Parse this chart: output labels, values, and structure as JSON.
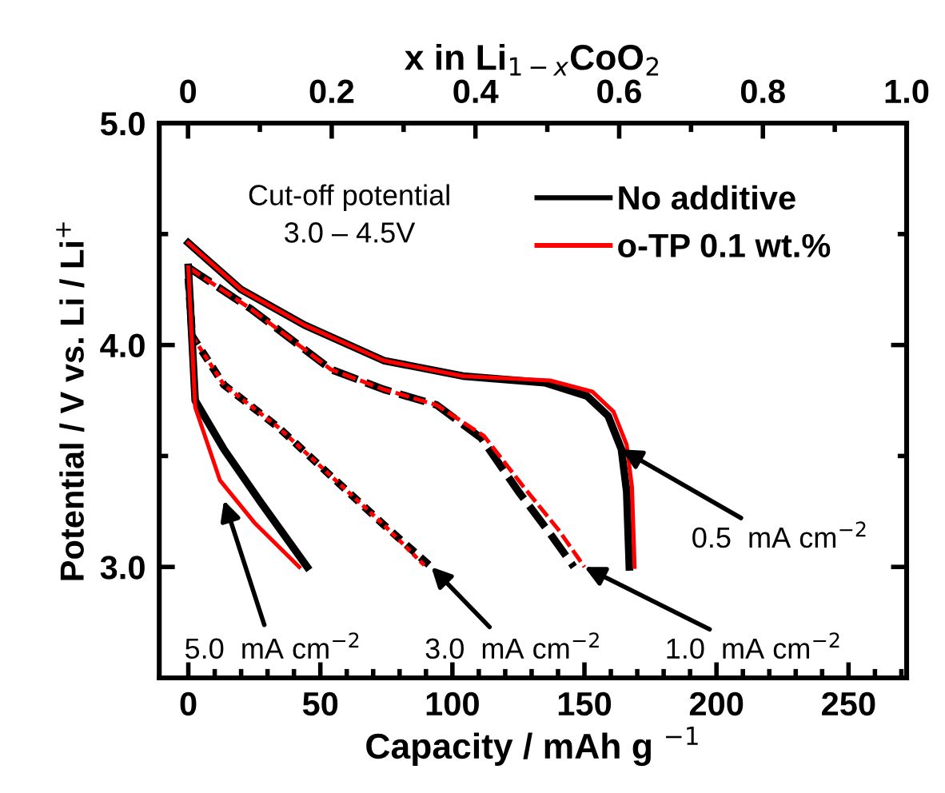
{
  "chart_data": {
    "type": "line",
    "xlabel": "Capacity / mAh g $^{−1}$",
    "ylabel": "Potential / V vs. Li / Li$^{+}$",
    "x2label": "x in Li$_{1−x}$CoO$_{2}$",
    "xlim": [
      -11,
      272
    ],
    "ylim": [
      2.5,
      5.0
    ],
    "x2lim": [
      -0.04,
      1.0
    ],
    "xticks": [
      0,
      {
        "value": 10,
        "label": null
      },
      {
        "value": 20,
        "label": null
      },
      {
        "value": 30,
        "label": null
      },
      {
        "value": 40,
        "label": null
      },
      50,
      {
        "value": 60,
        "label": null
      },
      {
        "value": 70,
        "label": null
      },
      {
        "value": 80,
        "label": null
      },
      {
        "value": 90,
        "label": null
      },
      100,
      {
        "value": 110,
        "label": null
      },
      {
        "value": 120,
        "label": null
      },
      {
        "value": 130,
        "label": null
      },
      {
        "value": 140,
        "label": null
      },
      150,
      {
        "value": 160,
        "label": null
      },
      {
        "value": 170,
        "label": null
      },
      {
        "value": 180,
        "label": null
      },
      {
        "value": 190,
        "label": null
      },
      200,
      {
        "value": 210,
        "label": null
      },
      {
        "value": 220,
        "label": null
      },
      {
        "value": 230,
        "label": null
      },
      {
        "value": 240,
        "label": null
      },
      250,
      {
        "value": 260,
        "label": null
      },
      {
        "value": 270,
        "label": null
      }
    ],
    "x2ticks": [
      0,
      {
        "value": 0.1,
        "label": null
      },
      0.2,
      {
        "value": 0.3,
        "label": null
      },
      0.4,
      {
        "value": 0.5,
        "label": null
      },
      0.6,
      {
        "value": 0.7,
        "label": null
      },
      0.8,
      {
        "value": 0.9,
        "label": null
      },
      {
        "value": 1.0,
        "label": "1.0"
      }
    ],
    "yticks": [
      {
        "value": 3.0,
        "label": "3.0"
      },
      {
        "value": 3.5,
        "label": null
      },
      {
        "value": 4.0,
        "label": "4.0"
      },
      {
        "value": 4.5,
        "label": null
      },
      {
        "value": 5.0,
        "label": "5.0"
      }
    ],
    "legend": "top right",
    "grid": false,
    "series": [
      {
        "name": "No additive",
        "color": "#000000",
        "line_style": "solid",
        "x": [
          0,
          20,
          44,
          74,
          104,
          135,
          151,
          159,
          164,
          166,
          167
        ],
        "values": [
          4.46,
          4.25,
          4.09,
          3.93,
          3.86,
          3.83,
          3.77,
          3.68,
          3.53,
          3.34,
          3.0
        ]
      },
      {
        "name": "o-TP 0.1 wt.%",
        "color": "#ff0000",
        "line_style": "solid",
        "x": [
          0,
          20,
          44,
          74,
          104,
          137,
          153,
          161,
          166,
          168,
          169
        ],
        "values": [
          4.46,
          4.25,
          4.09,
          3.93,
          3.86,
          3.84,
          3.79,
          3.7,
          3.55,
          3.36,
          3.0
        ]
      },
      {
        "color": "#000000",
        "line_style": "dashed",
        "x": [
          0,
          24,
          54,
          74,
          94,
          111,
          125,
          137,
          146
        ],
        "values": [
          4.35,
          4.16,
          3.89,
          3.8,
          3.73,
          3.58,
          3.34,
          3.15,
          3.0
        ]
      },
      {
        "color": "#ff0000",
        "line_style": "dashed",
        "x": [
          0,
          24,
          54,
          74,
          94,
          112,
          127,
          140,
          150
        ],
        "values": [
          4.35,
          4.16,
          3.89,
          3.8,
          3.73,
          3.59,
          3.36,
          3.17,
          3.0
        ]
      },
      {
        "color": "#000000",
        "line_style": "dotted",
        "x": [
          0,
          1.5,
          13.5,
          34,
          54,
          74,
          92
        ],
        "values": [
          4.3,
          4.04,
          3.82,
          3.63,
          3.41,
          3.19,
          3.0
        ]
      },
      {
        "color": "#ff0000",
        "line_style": "dotted",
        "x": [
          0,
          1.5,
          13.5,
          34,
          54,
          74,
          90
        ],
        "values": [
          4.3,
          4.04,
          3.82,
          3.63,
          3.41,
          3.19,
          3.0
        ]
      },
      {
        "color": "#000000",
        "line_style": "solid",
        "x": [
          0,
          2.6,
          13.5,
          27.5,
          45
        ],
        "values": [
          4.35,
          3.75,
          3.53,
          3.29,
          3.0
        ]
      },
      {
        "color": "#ff0000",
        "line_style": "solid",
        "x": [
          0,
          2.6,
          12,
          25,
          42
        ],
        "values": [
          4.35,
          3.72,
          3.39,
          3.2,
          3.0
        ]
      }
    ],
    "annotations": [
      "Cut-off potential\n3.0 – 4.5V",
      {
        "text": "0.5  mA cm$^{−2}$",
        "x": 164,
        "y": 3.53
      },
      {
        "text": "5.0  mA cm$^{−2}$",
        "x": 13.5,
        "y": 3.3
      },
      {
        "text": "3.0  mA cm$^{−2}$",
        "x": 92,
        "y": 3.0
      },
      {
        "text": "1.0  mA cm$^{−2}$",
        "x": 150,
        "y": 3.0
      }
    ]
  }
}
